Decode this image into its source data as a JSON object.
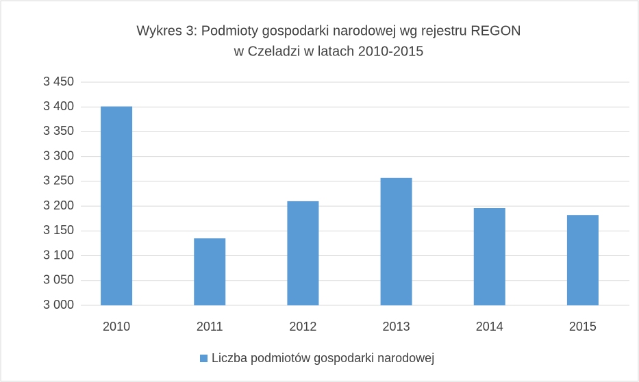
{
  "chart_data": {
    "type": "bar",
    "title": [
      "Wykres 3: Podmioty gospodarki narodowej wg rejestru REGON",
      "w Czeladzi w latach 2010-2015"
    ],
    "categories": [
      "2010",
      "2011",
      "2012",
      "2013",
      "2014",
      "2015"
    ],
    "series": [
      {
        "name": "Liczba podmiotów gospodarki narodowej",
        "color": "#5b9bd5",
        "values": [
          3401,
          3135,
          3210,
          3257,
          3196,
          3182
        ]
      }
    ],
    "ylim": [
      3000,
      3450
    ],
    "yticks": [
      {
        "value": 3000,
        "label": "3 000"
      },
      {
        "value": 3050,
        "label": "3 050"
      },
      {
        "value": 3100,
        "label": "3 100"
      },
      {
        "value": 3150,
        "label": "3 150"
      },
      {
        "value": 3200,
        "label": "3 200"
      },
      {
        "value": 3250,
        "label": "3 250"
      },
      {
        "value": 3300,
        "label": "3 300"
      },
      {
        "value": 3350,
        "label": "3 350"
      },
      {
        "value": 3400,
        "label": "3 400"
      },
      {
        "value": 3450,
        "label": "3 450"
      }
    ],
    "grid": true,
    "legend": "bottom"
  }
}
